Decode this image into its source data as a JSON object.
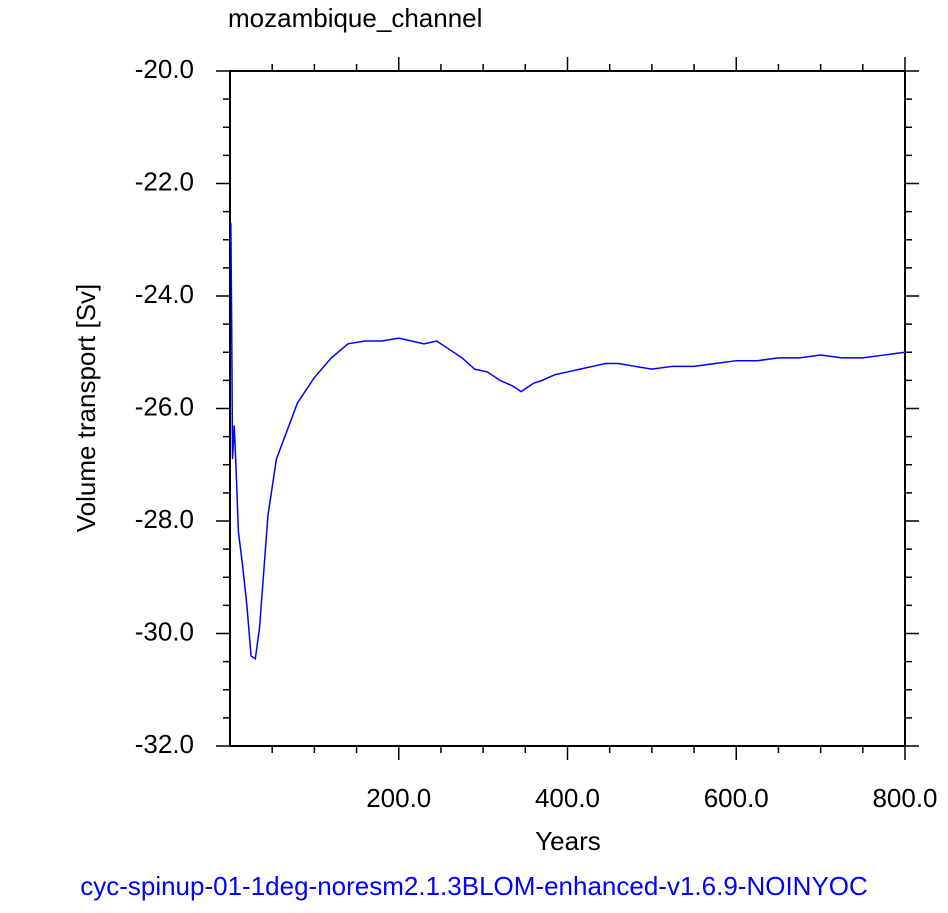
{
  "chart_data": {
    "type": "line",
    "title": "mozambique_channel",
    "x_label": "Years",
    "y_label": "Volume transport [Sv]",
    "caption": "cyc-spinup-01-1deg-noresm2.1.3BLOM-enhanced-v1.6.9-NOINYOC",
    "xlim": [
      0,
      800
    ],
    "ylim": [
      -32,
      -20
    ],
    "xticks": [
      {
        "value": 200,
        "label": "200.0"
      },
      {
        "value": 400,
        "label": "400.0"
      },
      {
        "value": 600,
        "label": "600.0"
      },
      {
        "value": 800,
        "label": "800.0"
      }
    ],
    "yticks": [
      {
        "value": -32,
        "label": "-32.0"
      },
      {
        "value": -30,
        "label": "-30.0"
      },
      {
        "value": -28,
        "label": "-28.0"
      },
      {
        "value": -26,
        "label": "-26.0"
      },
      {
        "value": -24,
        "label": "-24.0"
      },
      {
        "value": -22,
        "label": "-22.0"
      },
      {
        "value": -20,
        "label": "-20.0"
      }
    ],
    "xminorticks": [
      50,
      100,
      150,
      250,
      300,
      350,
      450,
      500,
      550,
      650,
      700,
      750
    ],
    "yminorticks": [
      -31.5,
      -31,
      -30.5,
      -29.5,
      -29,
      -28.5,
      -27.5,
      -27,
      -26.5,
      -25.5,
      -25,
      -24.5,
      -23.5,
      -23,
      -22.5,
      -21.5,
      -21,
      -20.5
    ],
    "grid": false,
    "series": [
      {
        "color": "#0000ff",
        "x": [
          1,
          2,
          3,
          5,
          7,
          10,
          15,
          20,
          25,
          30,
          35,
          40,
          45,
          55,
          65,
          80,
          100,
          120,
          140,
          160,
          180,
          200,
          215,
          230,
          245,
          260,
          275,
          290,
          305,
          320,
          335,
          345,
          360,
          370,
          385,
          400,
          415,
          430,
          445,
          460,
          480,
          500,
          525,
          550,
          575,
          600,
          625,
          650,
          675,
          700,
          725,
          750,
          775,
          800
        ],
        "values": [
          -22.7,
          -24.5,
          -26.9,
          -26.3,
          -27.0,
          -28.2,
          -28.8,
          -29.5,
          -30.4,
          -30.45,
          -29.9,
          -28.9,
          -27.9,
          -26.9,
          -26.5,
          -25.9,
          -25.45,
          -25.1,
          -24.85,
          -24.8,
          -24.8,
          -24.75,
          -24.8,
          -24.85,
          -24.8,
          -24.95,
          -25.1,
          -25.3,
          -25.35,
          -25.5,
          -25.6,
          -25.7,
          -25.55,
          -25.5,
          -25.4,
          -25.35,
          -25.3,
          -25.25,
          -25.2,
          -25.2,
          -25.25,
          -25.3,
          -25.25,
          -25.25,
          -25.2,
          -25.15,
          -25.15,
          -25.1,
          -25.1,
          -25.05,
          -25.1,
          -25.1,
          -25.05,
          -25.0
        ]
      }
    ]
  }
}
